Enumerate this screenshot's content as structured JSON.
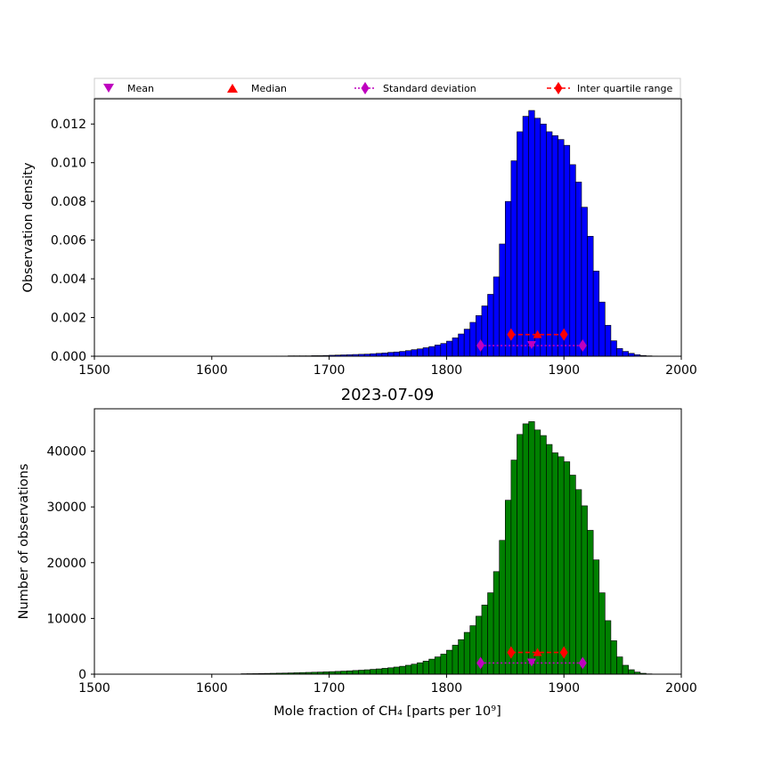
{
  "chart_data": [
    {
      "type": "bar",
      "title": "",
      "xlabel": "",
      "ylabel": "Observation density",
      "xlim": [
        1500,
        2000
      ],
      "ylim": [
        0,
        0.0133
      ],
      "xticks": [
        "1500",
        "1600",
        "1700",
        "1800",
        "1900",
        "2000"
      ],
      "yticks": [
        "0.000",
        "0.002",
        "0.004",
        "0.006",
        "0.008",
        "0.010",
        "0.012"
      ],
      "bar_color": "#0000ff",
      "bin_width": 5,
      "bin_starts": [
        1650,
        1655,
        1660,
        1665,
        1670,
        1675,
        1680,
        1685,
        1690,
        1695,
        1700,
        1705,
        1710,
        1715,
        1720,
        1725,
        1730,
        1735,
        1740,
        1745,
        1750,
        1755,
        1760,
        1765,
        1770,
        1775,
        1780,
        1785,
        1790,
        1795,
        1800,
        1805,
        1810,
        1815,
        1820,
        1825,
        1830,
        1835,
        1840,
        1845,
        1850,
        1855,
        1860,
        1865,
        1870,
        1875,
        1880,
        1885,
        1890,
        1895,
        1900,
        1905,
        1910,
        1915,
        1920,
        1925,
        1930,
        1935,
        1940,
        1945,
        1950,
        1955,
        1960,
        1965,
        1970,
        1975
      ],
      "values": [
        1e-05,
        1e-05,
        1e-05,
        2e-05,
        2e-05,
        2e-05,
        2e-05,
        3e-05,
        3e-05,
        4e-05,
        5e-05,
        6e-05,
        7e-05,
        8e-05,
        9e-05,
        0.0001,
        0.00011,
        0.00013,
        0.00015,
        0.00017,
        0.0002,
        0.00022,
        0.00025,
        0.00029,
        0.00034,
        0.00038,
        0.00044,
        0.0005,
        0.00058,
        0.00066,
        0.00078,
        0.00095,
        0.00115,
        0.0014,
        0.00175,
        0.0021,
        0.0026,
        0.0032,
        0.0041,
        0.0058,
        0.008,
        0.0101,
        0.0116,
        0.0124,
        0.0127,
        0.0123,
        0.012,
        0.0116,
        0.0114,
        0.0112,
        0.0109,
        0.0099,
        0.009,
        0.0077,
        0.0062,
        0.0044,
        0.0028,
        0.0016,
        0.0008,
        0.0004,
        0.00025,
        0.00015,
        8e-05,
        4e-05,
        2e-05,
        1e-05
      ],
      "markers": {
        "mean": 1872.5,
        "median": 1877.5,
        "std_range": [
          1829,
          1916
        ],
        "iqr_range": [
          1855,
          1900
        ],
        "std_y": 0.00055,
        "iqr_y": 0.00112
      }
    },
    {
      "type": "bar",
      "title": "2023-07-09",
      "xlabel": "Mole fraction of CH₄ [parts per 10⁹]",
      "ylabel": "Number of observations",
      "xlim": [
        1500,
        2000
      ],
      "ylim": [
        0,
        47600
      ],
      "xticks": [
        "1500",
        "1600",
        "1700",
        "1800",
        "1900",
        "2000"
      ],
      "yticks": [
        "0",
        "10000",
        "20000",
        "30000",
        "40000"
      ],
      "bar_color": "#008000",
      "bin_width": 5,
      "bin_starts": [
        1625,
        1630,
        1635,
        1640,
        1645,
        1650,
        1655,
        1660,
        1665,
        1670,
        1675,
        1680,
        1685,
        1690,
        1695,
        1700,
        1705,
        1710,
        1715,
        1720,
        1725,
        1730,
        1735,
        1740,
        1745,
        1750,
        1755,
        1760,
        1765,
        1770,
        1775,
        1780,
        1785,
        1790,
        1795,
        1800,
        1805,
        1810,
        1815,
        1820,
        1825,
        1830,
        1835,
        1840,
        1845,
        1850,
        1855,
        1860,
        1865,
        1870,
        1875,
        1880,
        1885,
        1890,
        1895,
        1900,
        1905,
        1910,
        1915,
        1920,
        1925,
        1930,
        1935,
        1940,
        1945,
        1950,
        1955,
        1960,
        1965,
        1970
      ],
      "values": [
        80,
        90,
        100,
        120,
        140,
        160,
        180,
        200,
        230,
        260,
        290,
        320,
        350,
        380,
        420,
        460,
        500,
        550,
        600,
        660,
        720,
        790,
        870,
        950,
        1050,
        1150,
        1280,
        1420,
        1600,
        1800,
        2050,
        2350,
        2700,
        3100,
        3600,
        4300,
        5200,
        6200,
        7500,
        8700,
        10400,
        12400,
        14600,
        18400,
        24000,
        31200,
        38400,
        43000,
        44900,
        45300,
        43800,
        42800,
        41200,
        39700,
        39000,
        38100,
        35700,
        33100,
        30200,
        25800,
        20500,
        14600,
        9600,
        6000,
        3100,
        1600,
        800,
        380,
        160,
        60
      ],
      "markers": {
        "mean": 1872.5,
        "median": 1877.5,
        "std_range": [
          1829,
          1916
        ],
        "iqr_range": [
          1855,
          1900
        ],
        "std_y": 2000,
        "iqr_y": 3900
      }
    }
  ],
  "legend": {
    "placement": "top",
    "entries": [
      {
        "label": "Mean",
        "marker": "triangle-down",
        "color": "#bf00bf"
      },
      {
        "label": "Median",
        "marker": "triangle-up",
        "color": "#ff0000"
      },
      {
        "label": "Standard deviation",
        "marker": "diamond-dotted-line",
        "color": "#bf00bf"
      },
      {
        "label": "Inter quartile range",
        "marker": "diamond-dashed-line",
        "color": "#ff0000"
      }
    ]
  }
}
